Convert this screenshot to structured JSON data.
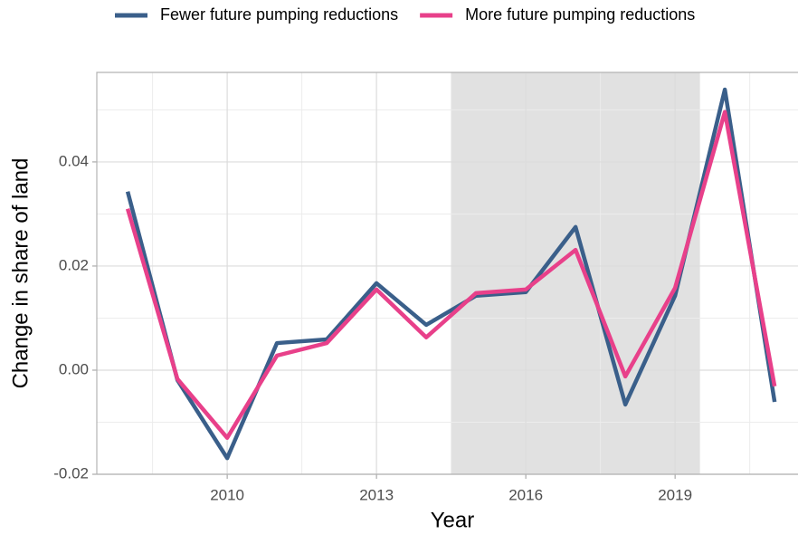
{
  "chart_data": {
    "type": "line",
    "x_label": "Year",
    "y_label": "Change in share of land",
    "x": [
      2008,
      2009,
      2010,
      2011,
      2012,
      2013,
      2014,
      2015,
      2016,
      2017,
      2018,
      2019,
      2020,
      2021
    ],
    "series": [
      {
        "name": "Fewer future pumping reductions",
        "color": "#3a5f8a",
        "values": [
          0.0343,
          -0.0019,
          -0.0169,
          0.0052,
          0.0059,
          0.0167,
          0.0087,
          0.0143,
          0.015,
          0.0275,
          -0.0066,
          0.0143,
          0.0539,
          -0.0061
        ]
      },
      {
        "name": "More future pumping reductions",
        "color": "#e8408a",
        "values": [
          0.031,
          -0.0017,
          -0.013,
          0.0028,
          0.0052,
          0.0155,
          0.0063,
          0.0148,
          0.0155,
          0.0231,
          -0.0012,
          0.0158,
          0.0496,
          -0.0031
        ]
      }
    ],
    "xlim": [
      2007.38,
      2021.47
    ],
    "xticks": [
      2010,
      2013,
      2016,
      2019
    ],
    "ylim": [
      -0.02,
      0.0572
    ],
    "yticks": [
      0.04,
      0.02,
      {
        "value": 0,
        "label": "0.00"
      },
      -0.02
    ],
    "shaded_region": [
      2014.5,
      2019.5
    ],
    "grid": true,
    "legend": "top"
  }
}
